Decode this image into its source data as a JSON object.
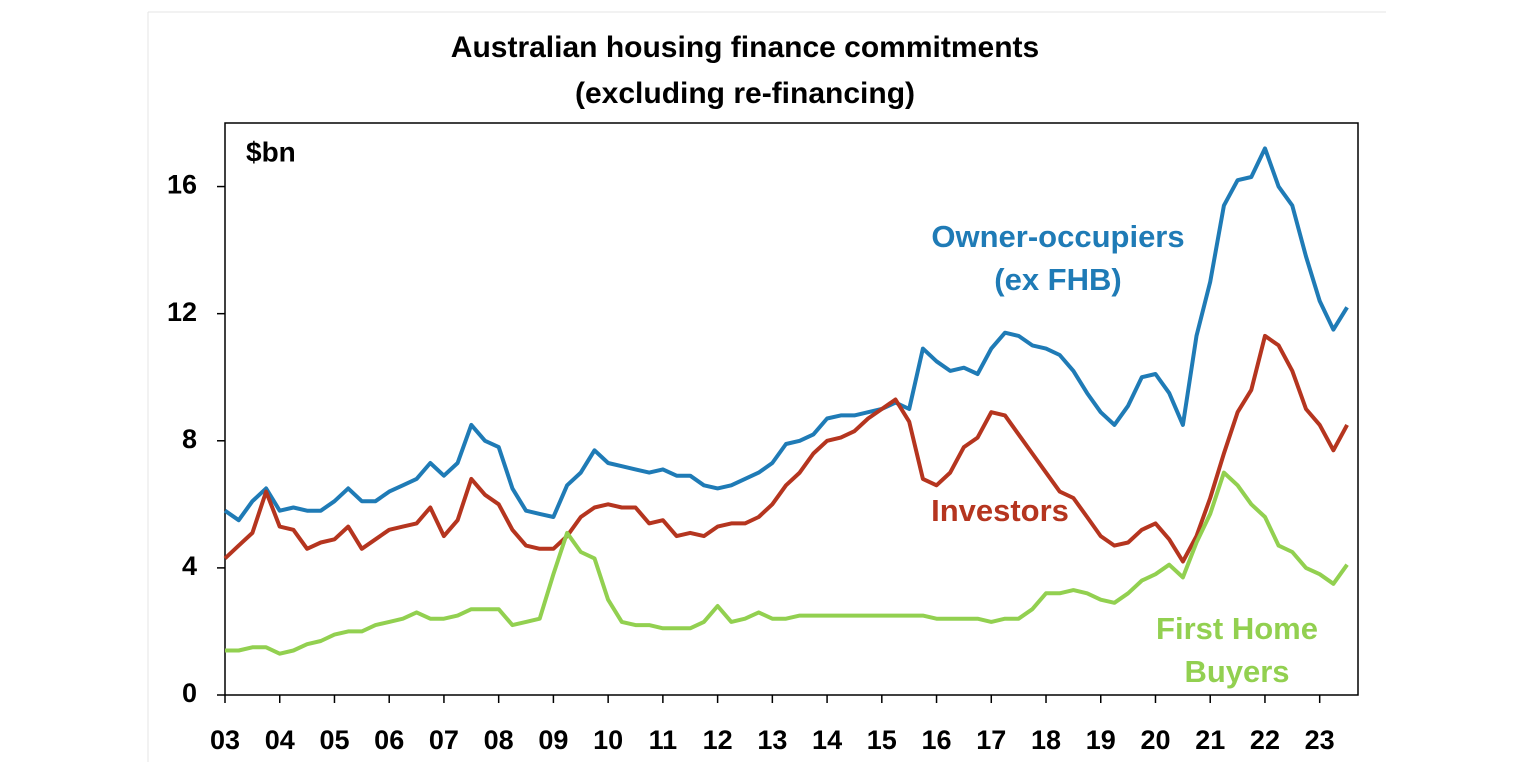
{
  "chart_data": {
    "type": "line",
    "title": "Australian housing finance commitments",
    "subtitle": "(excluding re-financing)",
    "y_label": "$bn",
    "x": [
      2003,
      2003.25,
      2003.5,
      2003.75,
      2004,
      2004.25,
      2004.5,
      2004.75,
      2005,
      2005.25,
      2005.5,
      2005.75,
      2006,
      2006.25,
      2006.5,
      2006.75,
      2007,
      2007.25,
      2007.5,
      2007.75,
      2008,
      2008.25,
      2008.5,
      2008.75,
      2009,
      2009.25,
      2009.5,
      2009.75,
      2010,
      2010.25,
      2010.5,
      2010.75,
      2011,
      2011.25,
      2011.5,
      2011.75,
      2012,
      2012.25,
      2012.5,
      2012.75,
      2013,
      2013.25,
      2013.5,
      2013.75,
      2014,
      2014.25,
      2014.5,
      2014.75,
      2015,
      2015.25,
      2015.5,
      2015.75,
      2016,
      2016.25,
      2016.5,
      2016.75,
      2017,
      2017.25,
      2017.5,
      2017.75,
      2018,
      2018.25,
      2018.5,
      2018.75,
      2019,
      2019.25,
      2019.5,
      2019.75,
      2020,
      2020.25,
      2020.5,
      2020.75,
      2021,
      2021.25,
      2021.5,
      2021.75,
      2022,
      2022.25,
      2022.5,
      2022.75,
      2023,
      2023.25,
      2023.5
    ],
    "series": [
      {
        "name": "Owner-occupiers (ex FHB)",
        "color": "#1f7bb6",
        "values": [
          5.8,
          5.5,
          6.1,
          6.5,
          5.8,
          5.9,
          5.8,
          5.8,
          6.1,
          6.5,
          6.1,
          6.1,
          6.4,
          6.6,
          6.8,
          7.3,
          6.9,
          7.3,
          8.5,
          8.0,
          7.8,
          6.5,
          5.8,
          5.7,
          5.6,
          6.6,
          7.0,
          7.7,
          7.3,
          7.2,
          7.1,
          7.0,
          7.1,
          6.9,
          6.9,
          6.6,
          6.5,
          6.6,
          6.8,
          7.0,
          7.3,
          7.9,
          8.0,
          8.2,
          8.7,
          8.8,
          8.8,
          8.9,
          9.0,
          9.2,
          9.0,
          10.9,
          10.5,
          10.2,
          10.3,
          10.1,
          10.9,
          11.4,
          11.3,
          11.0,
          10.9,
          10.7,
          10.2,
          9.5,
          8.9,
          8.5,
          9.1,
          10.0,
          10.1,
          9.5,
          8.5,
          11.3,
          13.0,
          15.4,
          16.2,
          16.3,
          17.2,
          16.0,
          15.4,
          13.8,
          12.4,
          11.5,
          12.2
        ]
      },
      {
        "name": "Investors",
        "color": "#b5351f",
        "values": [
          4.3,
          4.7,
          5.1,
          6.4,
          5.3,
          5.2,
          4.6,
          4.8,
          4.9,
          5.3,
          4.6,
          4.9,
          5.2,
          5.3,
          5.4,
          5.9,
          5.0,
          5.5,
          6.8,
          6.3,
          6.0,
          5.2,
          4.7,
          4.6,
          4.6,
          5.0,
          5.6,
          5.9,
          6.0,
          5.9,
          5.9,
          5.4,
          5.5,
          5.0,
          5.1,
          5.0,
          5.3,
          5.4,
          5.4,
          5.6,
          6.0,
          6.6,
          7.0,
          7.6,
          8.0,
          8.1,
          8.3,
          8.7,
          9.0,
          9.3,
          8.6,
          6.8,
          6.6,
          7.0,
          7.8,
          8.1,
          8.9,
          8.8,
          8.2,
          7.6,
          7.0,
          6.4,
          6.2,
          5.6,
          5.0,
          4.7,
          4.8,
          5.2,
          5.4,
          4.9,
          4.2,
          5.0,
          6.2,
          7.6,
          8.9,
          9.6,
          11.3,
          11.0,
          10.2,
          9.0,
          8.5,
          7.7,
          8.5
        ]
      },
      {
        "name": "First Home Buyers",
        "color": "#92d050",
        "values": [
          1.4,
          1.4,
          1.5,
          1.5,
          1.3,
          1.4,
          1.6,
          1.7,
          1.9,
          2.0,
          2.0,
          2.2,
          2.3,
          2.4,
          2.6,
          2.4,
          2.4,
          2.5,
          2.7,
          2.7,
          2.7,
          2.2,
          2.3,
          2.4,
          3.8,
          5.1,
          4.5,
          4.3,
          3.0,
          2.3,
          2.2,
          2.2,
          2.1,
          2.1,
          2.1,
          2.3,
          2.8,
          2.3,
          2.4,
          2.6,
          2.4,
          2.4,
          2.5,
          2.5,
          2.5,
          2.5,
          2.5,
          2.5,
          2.5,
          2.5,
          2.5,
          2.5,
          2.4,
          2.4,
          2.4,
          2.4,
          2.3,
          2.4,
          2.4,
          2.7,
          3.2,
          3.2,
          3.3,
          3.2,
          3.0,
          2.9,
          3.2,
          3.6,
          3.8,
          4.1,
          3.7,
          4.8,
          5.7,
          7.0,
          6.6,
          6.0,
          5.6,
          4.7,
          4.5,
          4.0,
          3.8,
          3.5,
          4.1
        ]
      }
    ],
    "annotations": [
      {
        "lines": [
          "Owner-occupiers",
          "(ex FHB)"
        ],
        "color": "#1f7bb6"
      },
      {
        "lines": [
          "Investors"
        ],
        "color": "#b5351f"
      },
      {
        "lines": [
          "First Home",
          "Buyers"
        ],
        "color": "#92d050"
      }
    ],
    "xlim": [
      2003,
      2023.7
    ],
    "xticks": [
      {
        "value": 2003,
        "label": "03"
      },
      {
        "value": 2004,
        "label": "04"
      },
      {
        "value": 2005,
        "label": "05"
      },
      {
        "value": 2006,
        "label": "06"
      },
      {
        "value": 2007,
        "label": "07"
      },
      {
        "value": 2008,
        "label": "08"
      },
      {
        "value": 2009,
        "label": "09"
      },
      {
        "value": 2010,
        "label": "10"
      },
      {
        "value": 2011,
        "label": "11"
      },
      {
        "value": 2012,
        "label": "12"
      },
      {
        "value": 2013,
        "label": "13"
      },
      {
        "value": 2014,
        "label": "14"
      },
      {
        "value": 2015,
        "label": "15"
      },
      {
        "value": 2016,
        "label": "16"
      },
      {
        "value": 2017,
        "label": "17"
      },
      {
        "value": 2018,
        "label": "18"
      },
      {
        "value": 2019,
        "label": "19"
      },
      {
        "value": 2020,
        "label": "20"
      },
      {
        "value": 2021,
        "label": "21"
      },
      {
        "value": 2022,
        "label": "22"
      },
      {
        "value": 2023,
        "label": "23"
      }
    ],
    "ylim": [
      0,
      18
    ],
    "yticks": [
      0,
      4,
      8,
      12,
      16
    ],
    "grid": false
  }
}
